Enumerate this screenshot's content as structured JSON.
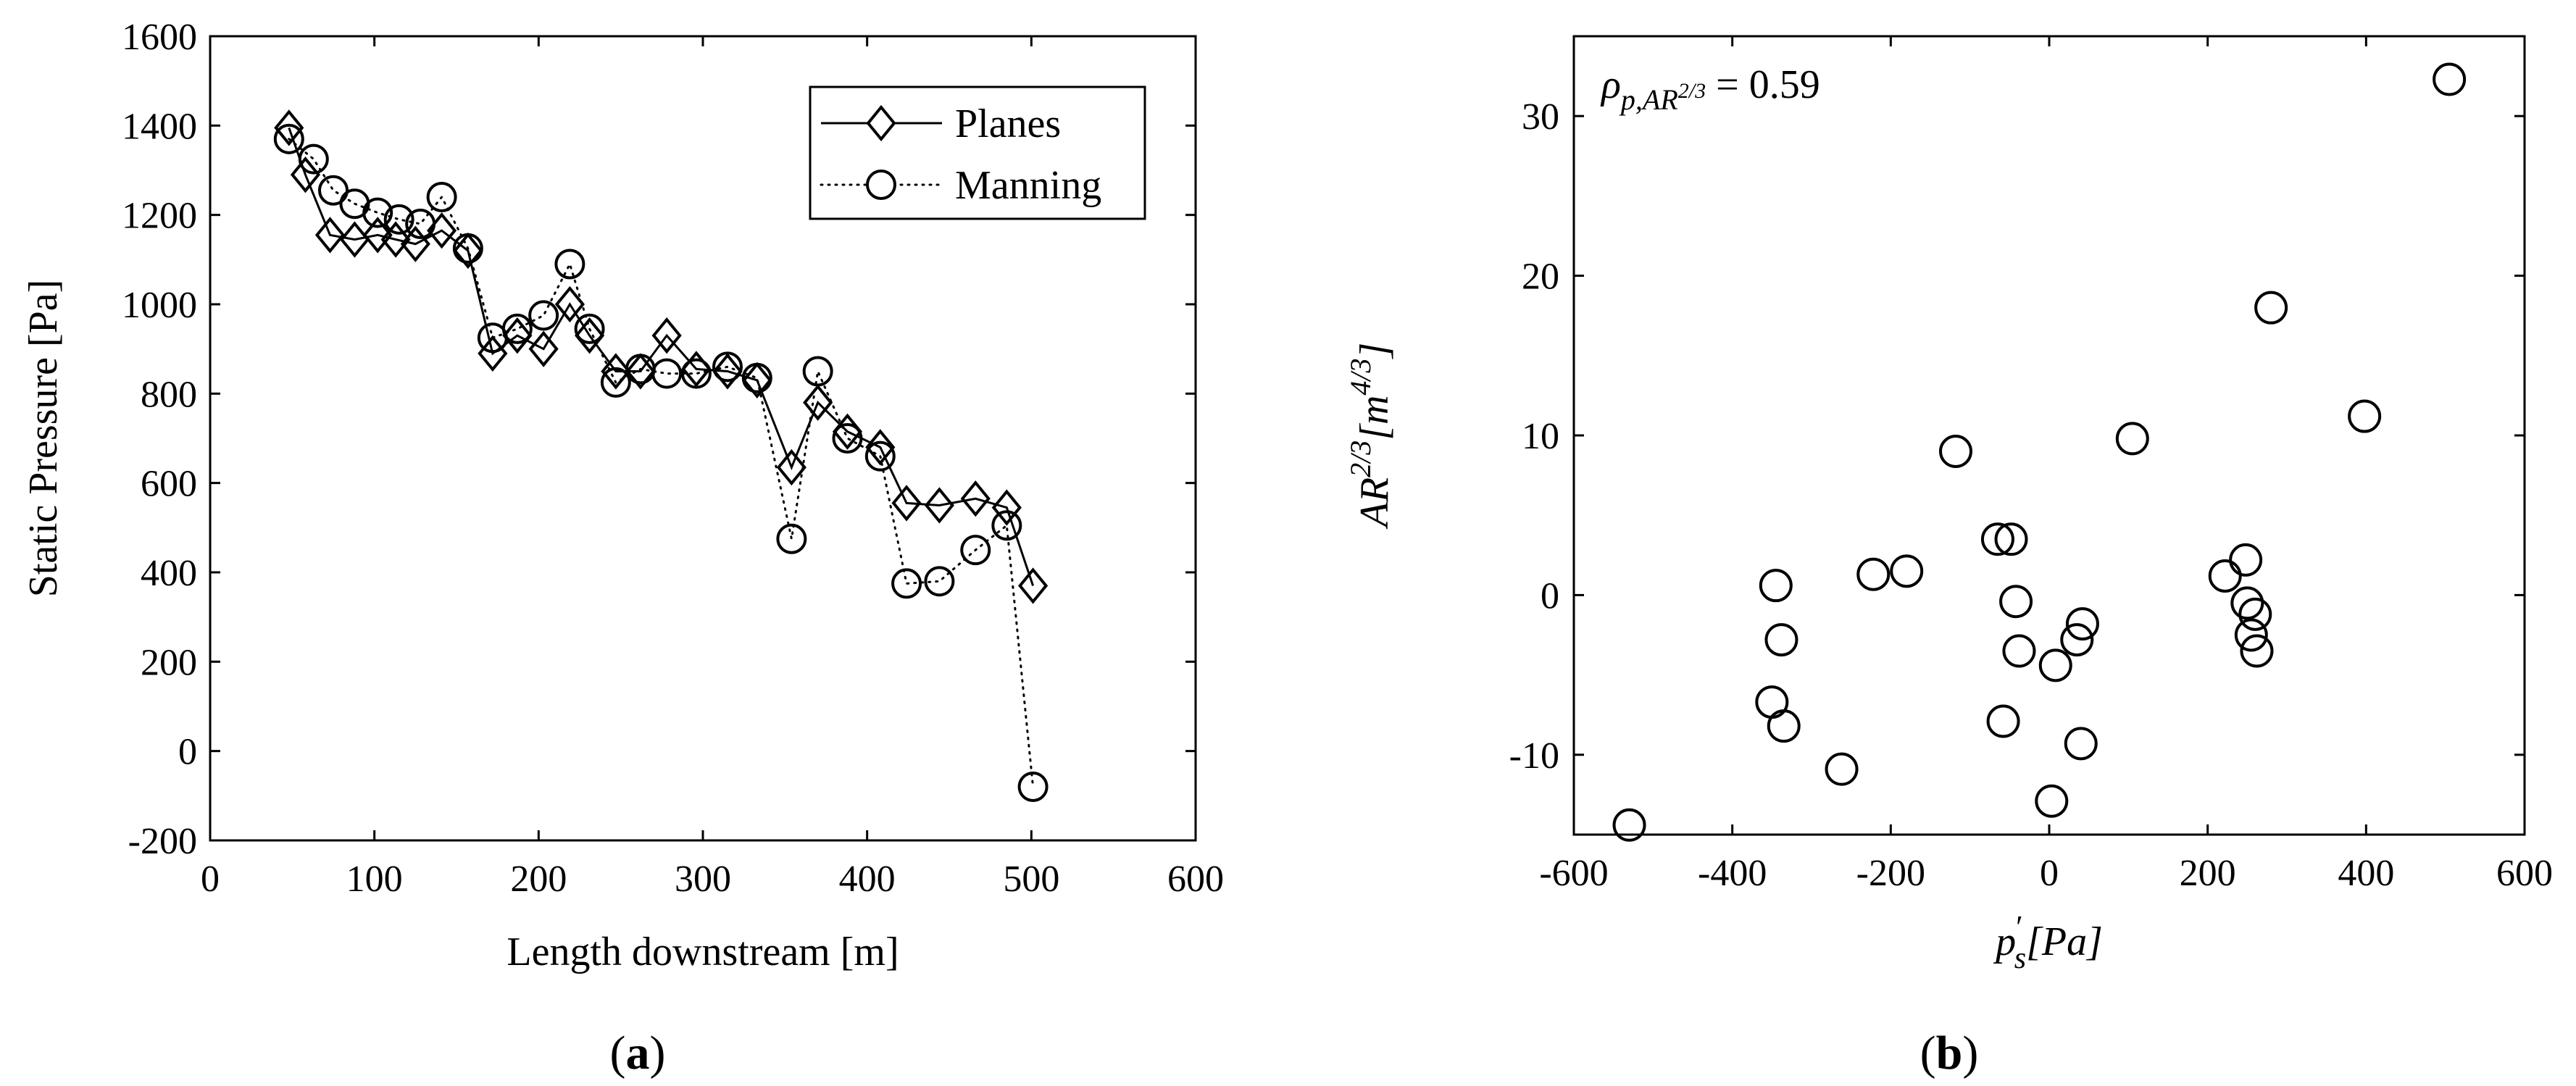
{
  "chart_data": [
    {
      "type": "line",
      "panel": "a",
      "panel_label": "(a)",
      "panel_label_letter": "a",
      "xlabel": "Length downstream [m]",
      "ylabel": "Static Pressure [Pa]",
      "xlim": [
        0,
        600
      ],
      "ylim": [
        -200,
        1600
      ],
      "xticks": [
        0,
        100,
        200,
        300,
        400,
        500,
        600
      ],
      "yticks": [
        -200,
        0,
        200,
        400,
        600,
        800,
        1000,
        1200,
        1400,
        1600
      ],
      "grid": false,
      "legend_position": "top-right",
      "series": [
        {
          "name": "Planes",
          "line_style": "solid",
          "marker": "diamond",
          "x": [
            48,
            58,
            73,
            88,
            102,
            113,
            125,
            141,
            157,
            172,
            187,
            203,
            219,
            231,
            247,
            262,
            278,
            296,
            315,
            333,
            354,
            370,
            388,
            408,
            424,
            444,
            466,
            485,
            501
          ],
          "y": [
            1395,
            1290,
            1155,
            1145,
            1155,
            1145,
            1135,
            1165,
            1120,
            890,
            930,
            900,
            1000,
            930,
            850,
            850,
            930,
            855,
            850,
            830,
            635,
            780,
            715,
            680,
            555,
            550,
            565,
            545,
            370
          ]
        },
        {
          "name": "Manning",
          "line_style": "dotted",
          "marker": "circle",
          "x": [
            48,
            63,
            75,
            88,
            102,
            115,
            128,
            141,
            157,
            172,
            187,
            203,
            219,
            231,
            247,
            262,
            278,
            296,
            315,
            333,
            354,
            370,
            388,
            408,
            424,
            444,
            466,
            485,
            501
          ],
          "y": [
            1370,
            1325,
            1255,
            1225,
            1205,
            1190,
            1180,
            1240,
            1125,
            925,
            945,
            975,
            1090,
            945,
            825,
            855,
            845,
            845,
            860,
            835,
            475,
            850,
            700,
            660,
            375,
            380,
            450,
            505,
            -80
          ]
        }
      ]
    },
    {
      "type": "scatter",
      "panel": "b",
      "panel_label": "(b)",
      "panel_label_letter": "b",
      "xlabel": "p′s[Pa]",
      "ylabel": "AR^{2/3}[m^{4/3}]",
      "annotation": "ρp,AR2/3 = 0.59",
      "annotation_value": "0.59",
      "xlim": [
        -600,
        600
      ],
      "ylim": [
        -15,
        35
      ],
      "xticks": [
        -600,
        -400,
        -200,
        0,
        200,
        400,
        600
      ],
      "yticks": [
        -10,
        0,
        10,
        20,
        30
      ],
      "grid": false,
      "marker": "circle",
      "points": [
        {
          "x": -530,
          "y": -14.4
        },
        {
          "x": -350,
          "y": -6.7
        },
        {
          "x": -345,
          "y": 0.6
        },
        {
          "x": -338,
          "y": -2.8
        },
        {
          "x": -335,
          "y": -8.2
        },
        {
          "x": -262,
          "y": -10.9
        },
        {
          "x": -222,
          "y": 1.3
        },
        {
          "x": -180,
          "y": 1.5
        },
        {
          "x": -118,
          "y": 9.0
        },
        {
          "x": -65,
          "y": 3.5
        },
        {
          "x": -48,
          "y": 3.5
        },
        {
          "x": -58,
          "y": -7.9
        },
        {
          "x": -42,
          "y": -0.4
        },
        {
          "x": -38,
          "y": -3.5
        },
        {
          "x": 3,
          "y": -12.9
        },
        {
          "x": 8,
          "y": -4.4
        },
        {
          "x": 35,
          "y": -2.8
        },
        {
          "x": 42,
          "y": -1.8
        },
        {
          "x": 40,
          "y": -9.3
        },
        {
          "x": 105,
          "y": 9.8
        },
        {
          "x": 222,
          "y": 1.2
        },
        {
          "x": 248,
          "y": 2.2
        },
        {
          "x": 250,
          "y": -0.5
        },
        {
          "x": 255,
          "y": -2.5
        },
        {
          "x": 260,
          "y": -1.2
        },
        {
          "x": 262,
          "y": -3.5
        },
        {
          "x": 280,
          "y": 18.0
        },
        {
          "x": 398,
          "y": 11.2
        },
        {
          "x": 505,
          "y": 32.3
        }
      ]
    }
  ]
}
